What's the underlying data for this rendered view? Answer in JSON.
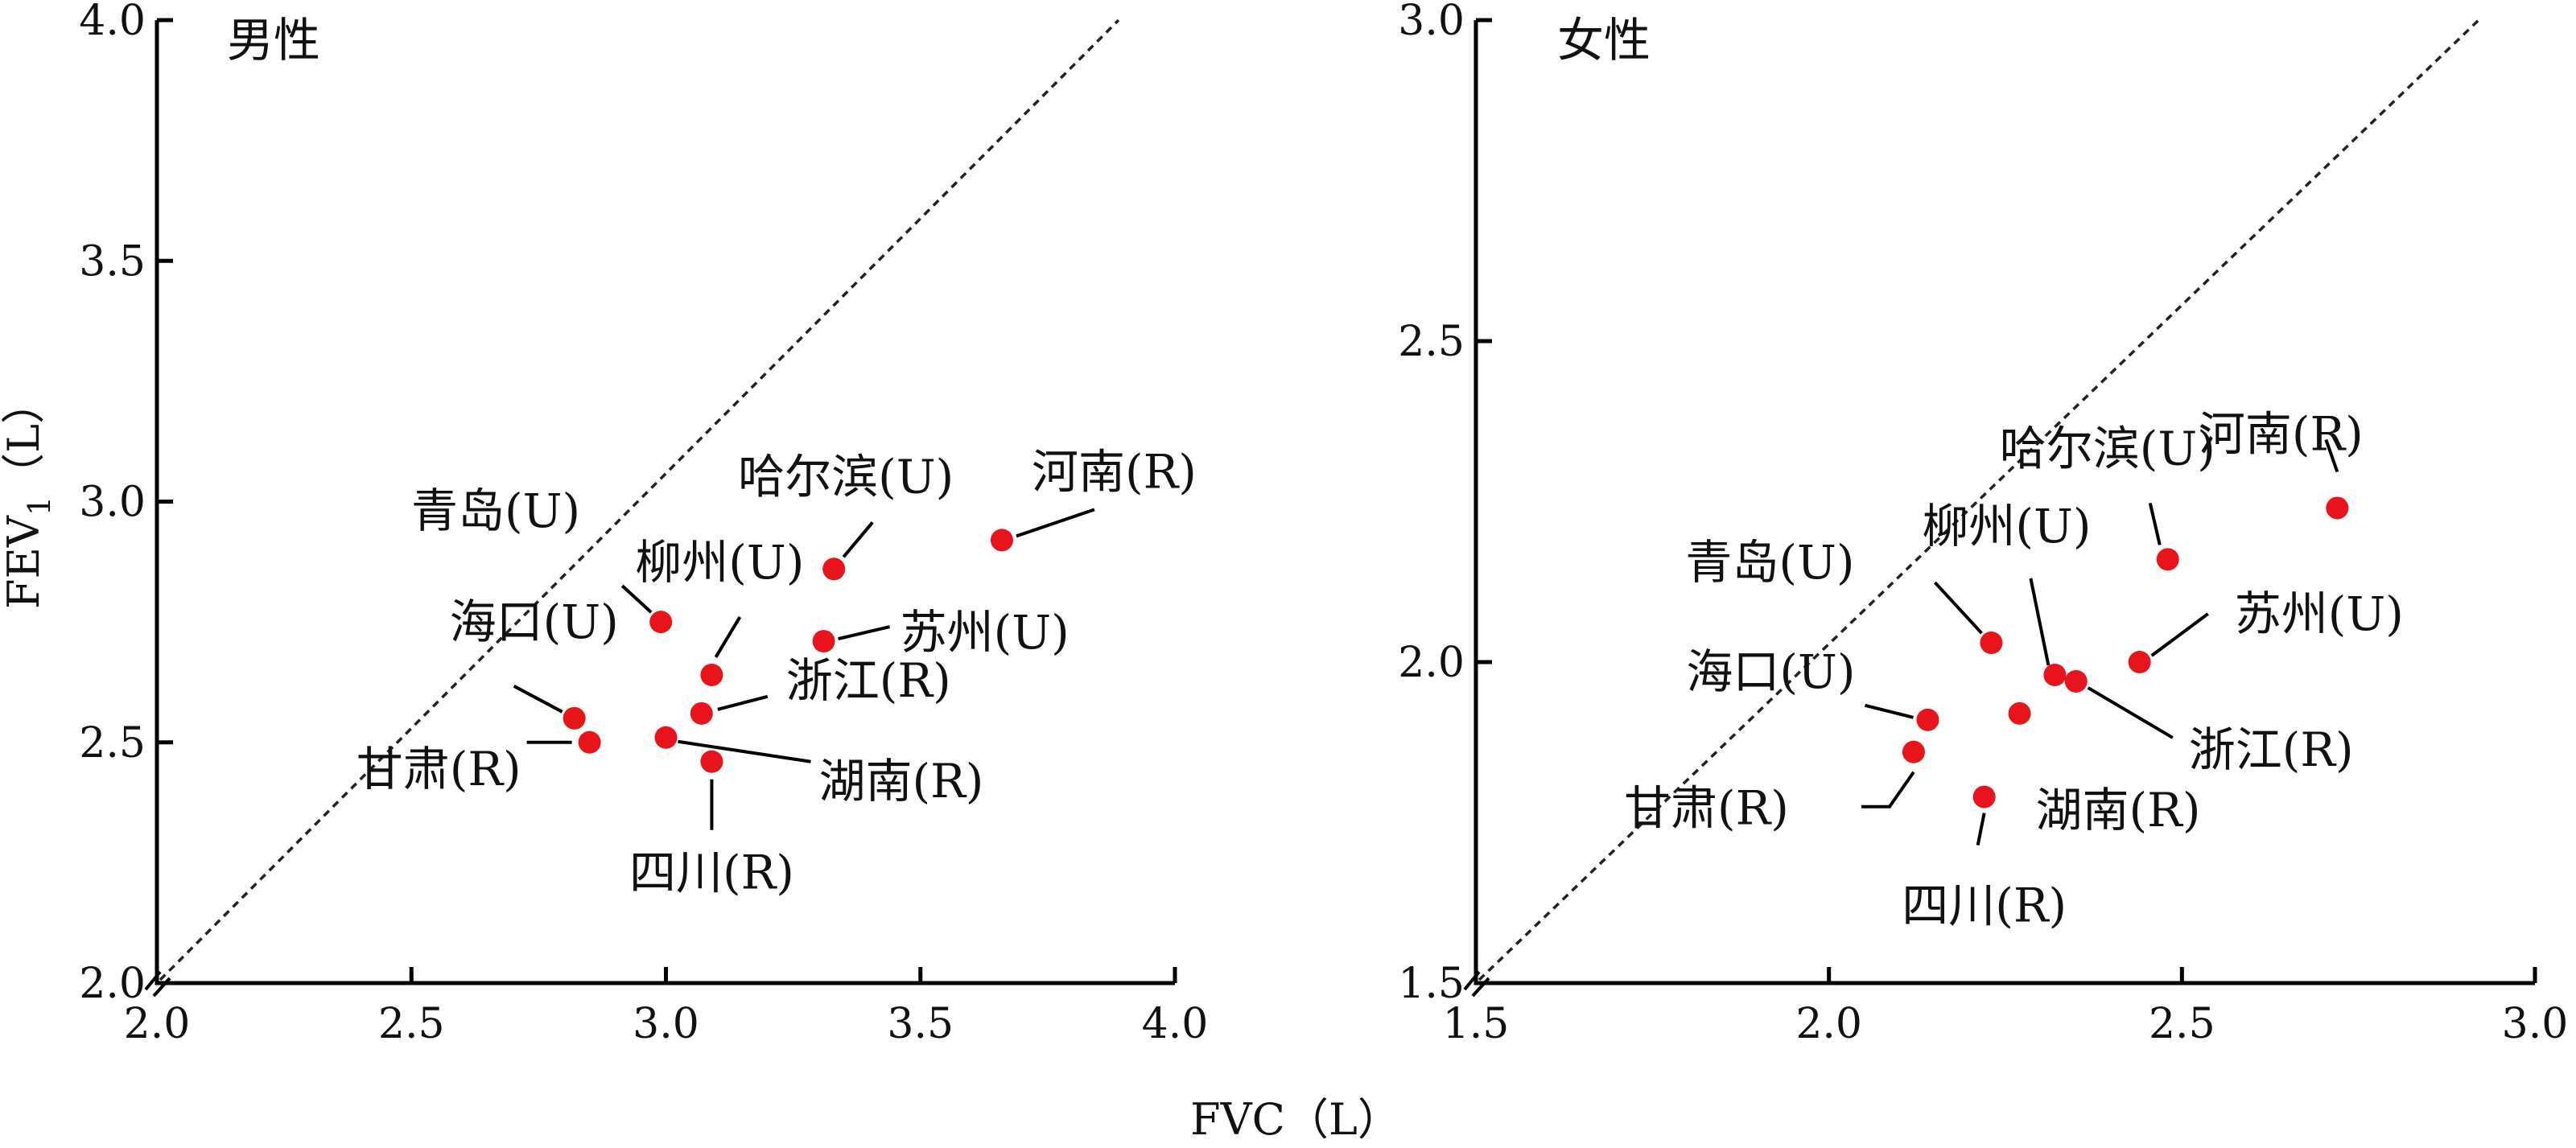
{
  "chart_data": [
    {
      "type": "scatter",
      "title": "男性",
      "xlim": [
        2.0,
        4.0
      ],
      "ylim": [
        2.0,
        4.0
      ],
      "x_ticks": [
        2.0,
        2.5,
        3.0,
        3.5,
        4.0
      ],
      "y_ticks": [
        2.0,
        2.5,
        3.0,
        3.5,
        4.0
      ],
      "tick_labels_x": [
        "2.0",
        "2.5",
        "3.0",
        "3.5",
        "4.0"
      ],
      "tick_labels_y": [
        "2.0",
        "2.5",
        "3.0",
        "3.5",
        "4.0"
      ],
      "reference_line": "y = x",
      "point_color": "#e8141b",
      "points": [
        {
          "label": "青岛(U)",
          "x": 2.99,
          "y": 2.75
        },
        {
          "label": "柳州(U)",
          "x": 3.09,
          "y": 2.64
        },
        {
          "label": "哈尔滨(U)",
          "x": 3.33,
          "y": 2.86
        },
        {
          "label": "河南(R)",
          "x": 3.66,
          "y": 2.92
        },
        {
          "label": "苏州(U)",
          "x": 3.31,
          "y": 2.71
        },
        {
          "label": "浙江(R)",
          "x": 3.07,
          "y": 2.56
        },
        {
          "label": "海口(U)",
          "x": 2.82,
          "y": 2.55
        },
        {
          "label": "甘肃(R)",
          "x": 2.85,
          "y": 2.5
        },
        {
          "label": "湖南(R)",
          "x": 3.0,
          "y": 2.51
        },
        {
          "label": "四川(R)",
          "x": 3.09,
          "y": 2.46
        }
      ]
    },
    {
      "type": "scatter",
      "title": "女性",
      "xlim": [
        1.5,
        3.0
      ],
      "ylim": [
        1.5,
        3.0
      ],
      "x_ticks": [
        1.5,
        2.0,
        2.5,
        3.0
      ],
      "y_ticks": [
        1.5,
        2.0,
        2.5,
        3.0
      ],
      "tick_labels_x": [
        "1.5",
        "2.0",
        "2.5",
        "3.0"
      ],
      "tick_labels_y": [
        "1.5",
        "2.0",
        "2.5",
        "3.0"
      ],
      "reference_line": "y = x",
      "point_color": "#e8141b",
      "points": [
        {
          "label": "河南(R)",
          "x": 2.72,
          "y": 2.24
        },
        {
          "label": "哈尔滨(U)",
          "x": 2.48,
          "y": 2.16
        },
        {
          "label": "柳州(U)",
          "x": 2.32,
          "y": 1.98
        },
        {
          "label": "青岛(U)",
          "x": 2.23,
          "y": 2.03
        },
        {
          "label": "苏州(U)",
          "x": 2.44,
          "y": 2.0
        },
        {
          "label": "浙江(R)",
          "x": 2.35,
          "y": 1.97
        },
        {
          "label": "海口(U)",
          "x": 2.14,
          "y": 1.91
        },
        {
          "label": "湖南(R)",
          "x": 2.27,
          "y": 1.92
        },
        {
          "label": "甘肃(R)",
          "x": 2.12,
          "y": 1.86
        },
        {
          "label": "四川(R)",
          "x": 2.22,
          "y": 1.79
        }
      ]
    }
  ],
  "axes": {
    "y_label_main": "FEV",
    "y_label_sub": "1",
    "y_label_unit": "（L）",
    "x_label": "FVC（L）"
  }
}
